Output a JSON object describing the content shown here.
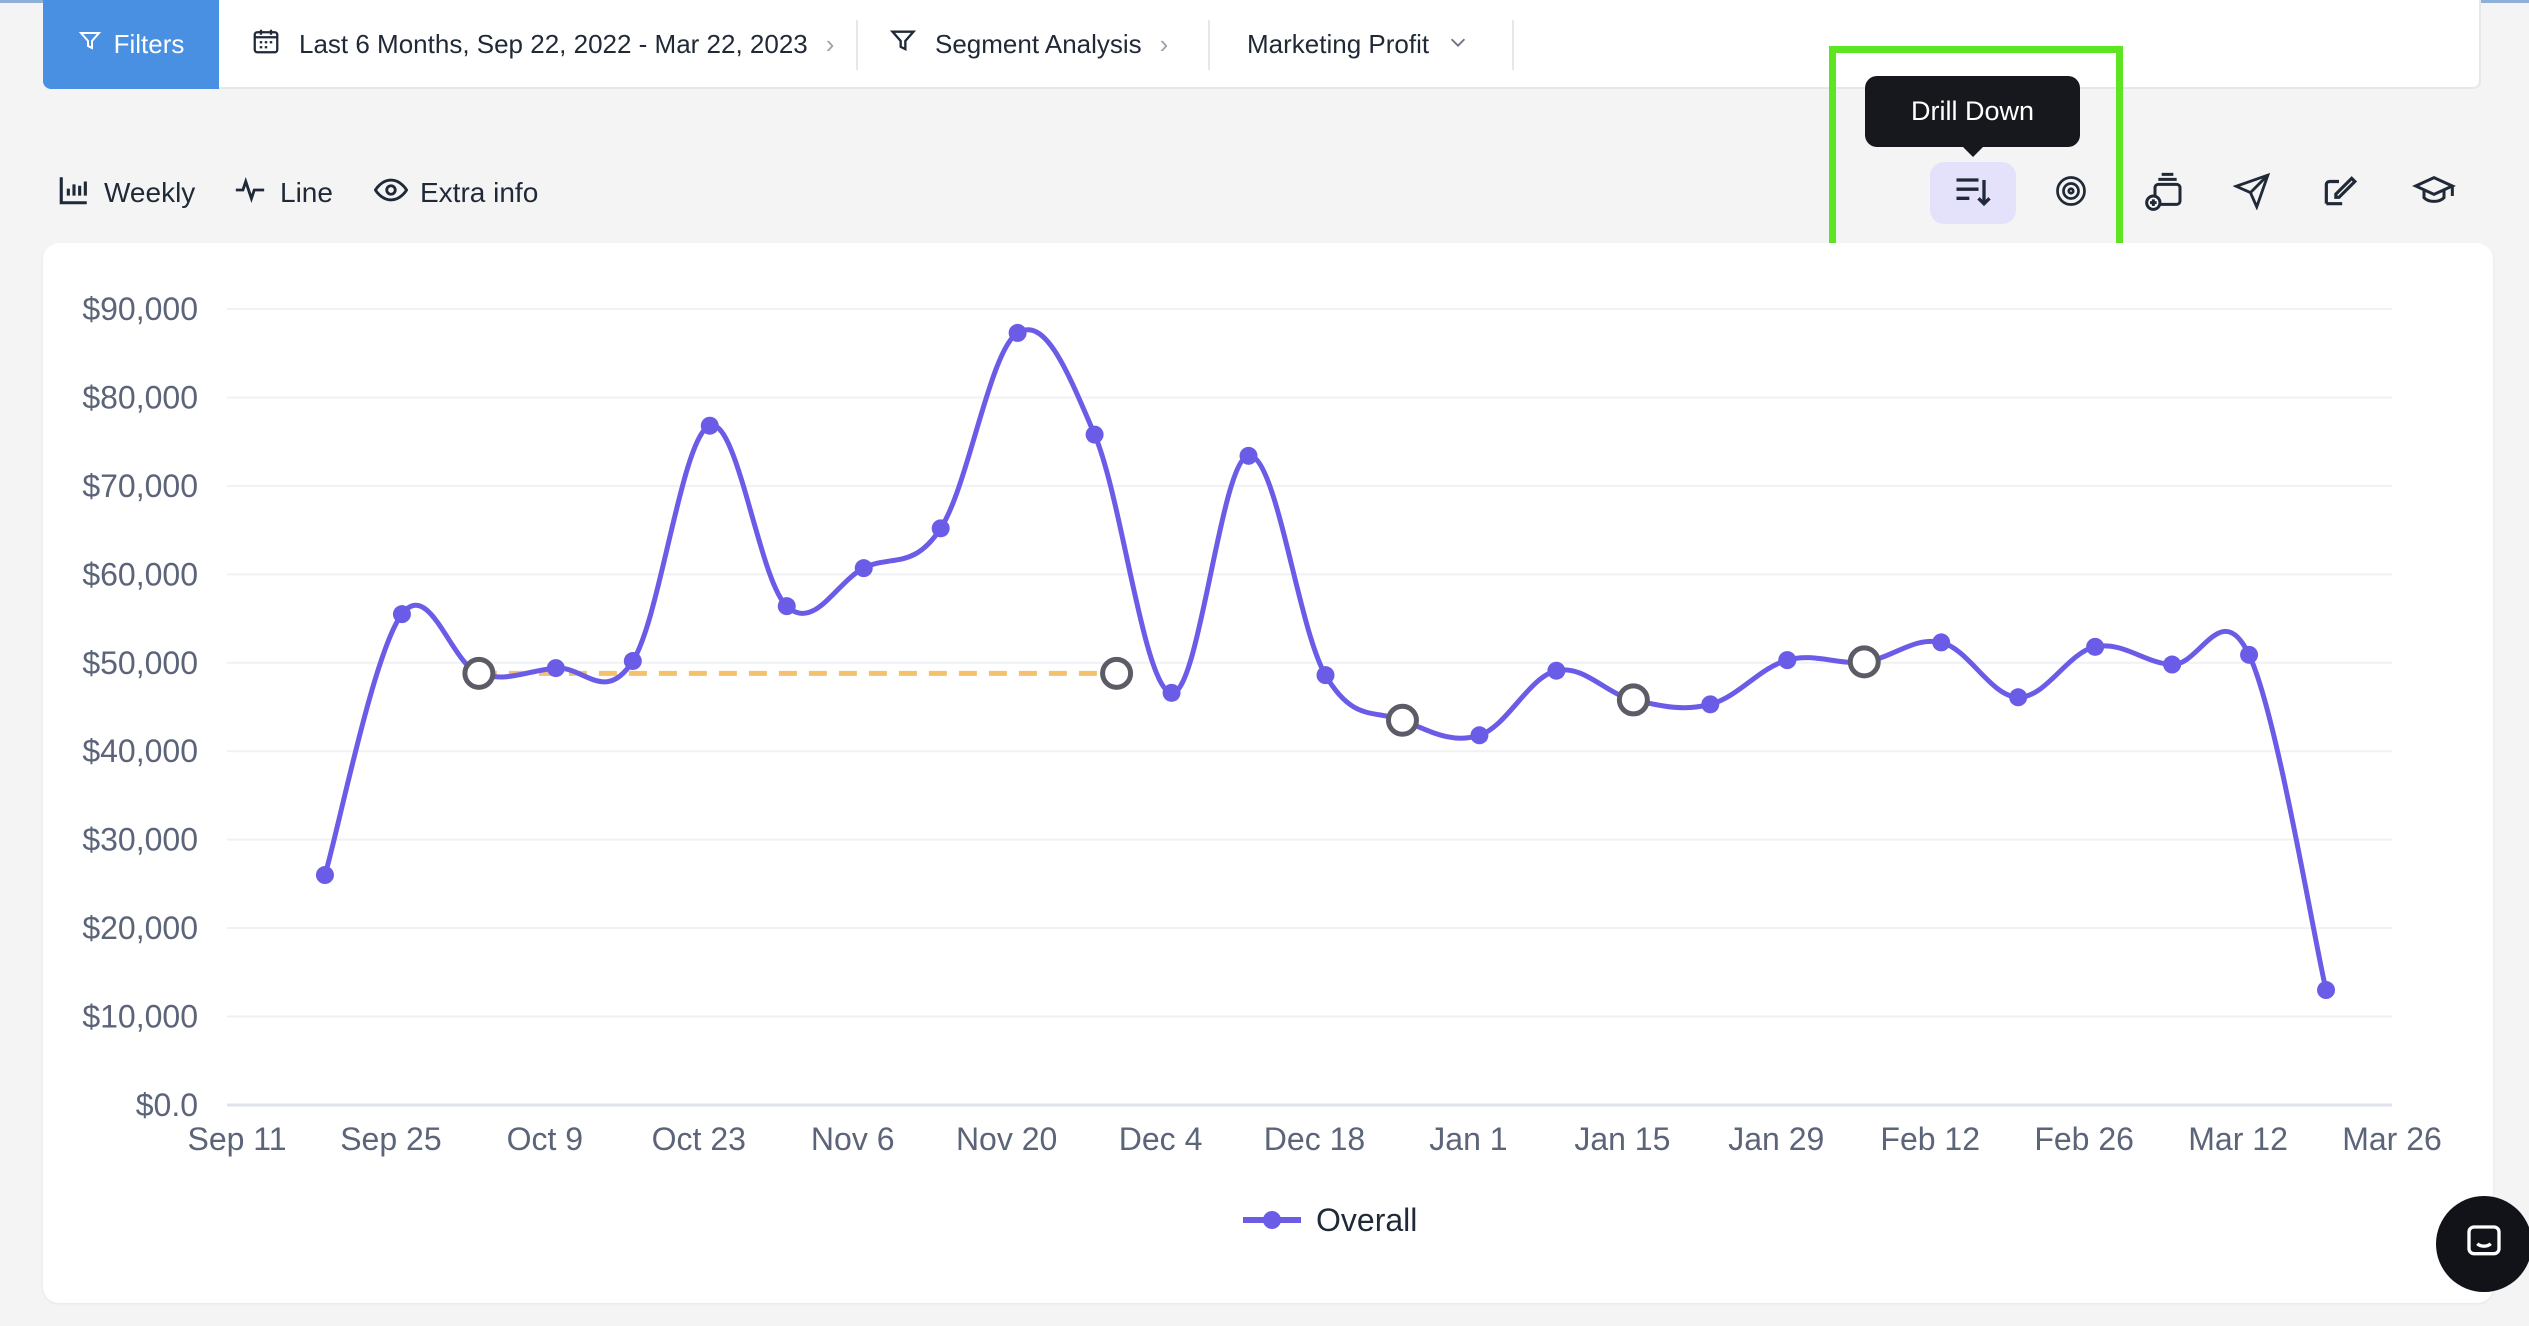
{
  "filter_bar": {
    "filters_label": "Filters",
    "date_range": "Last 6 Months, Sep 22, 2022 - Mar 22, 2023",
    "segment": "Segment Analysis",
    "metric": "Marketing Profit"
  },
  "toolbar": {
    "granularity": "Weekly",
    "chart_type": "Line",
    "extra_info": "Extra info",
    "tooltip": "Drill Down"
  },
  "colors": {
    "accent": "#4a90e2",
    "series": "#6b5ce7",
    "comparison": "#f5c16c",
    "highlight": "#5de524"
  },
  "chart_data": {
    "type": "line",
    "x_ticks": [
      "Sep 11",
      "Sep 25",
      "Oct 9",
      "Oct 23",
      "Nov 6",
      "Nov 20",
      "Dec 4",
      "Dec 18",
      "Jan 1",
      "Jan 15",
      "Jan 29",
      "Feb 12",
      "Feb 26",
      "Mar 12",
      "Mar 26"
    ],
    "y_ticks": [
      "$0.0",
      "$10,000",
      "$20,000",
      "$30,000",
      "$40,000",
      "$50,000",
      "$60,000",
      "$70,000",
      "$80,000",
      "$90,000"
    ],
    "ylim": [
      0,
      90000
    ],
    "x_range_days": [
      0,
      196
    ],
    "series": [
      {
        "name": "Overall",
        "points": [
          {
            "day": 8,
            "value": 26000
          },
          {
            "day": 15,
            "value": 55500
          },
          {
            "day": 22,
            "value": 48800
          },
          {
            "day": 29,
            "value": 49400
          },
          {
            "day": 36,
            "value": 50200
          },
          {
            "day": 43,
            "value": 76800
          },
          {
            "day": 50,
            "value": 56400
          },
          {
            "day": 57,
            "value": 60700
          },
          {
            "day": 64,
            "value": 65200
          },
          {
            "day": 71,
            "value": 87300
          },
          {
            "day": 78,
            "value": 75800
          },
          {
            "day": 85,
            "value": 46600
          },
          {
            "day": 92,
            "value": 73400
          },
          {
            "day": 99,
            "value": 48600
          },
          {
            "day": 106,
            "value": 43500
          },
          {
            "day": 113,
            "value": 41800
          },
          {
            "day": 120,
            "value": 49100
          },
          {
            "day": 127,
            "value": 45800
          },
          {
            "day": 134,
            "value": 45300
          },
          {
            "day": 141,
            "value": 50300
          },
          {
            "day": 148,
            "value": 50100
          },
          {
            "day": 155,
            "value": 52300
          },
          {
            "day": 162,
            "value": 46100
          },
          {
            "day": 169,
            "value": 51800
          },
          {
            "day": 176,
            "value": 49800
          },
          {
            "day": 183,
            "value": 50900
          },
          {
            "day": 190,
            "value": 13000
          }
        ]
      }
    ],
    "hollow_marker_days": [
      22,
      80,
      106,
      127,
      148
    ],
    "comparison_line": {
      "from_day": 22,
      "to_day": 80,
      "value": 48800
    },
    "legend": [
      "Overall"
    ],
    "legend_position": "bottom-center",
    "grid": true
  }
}
